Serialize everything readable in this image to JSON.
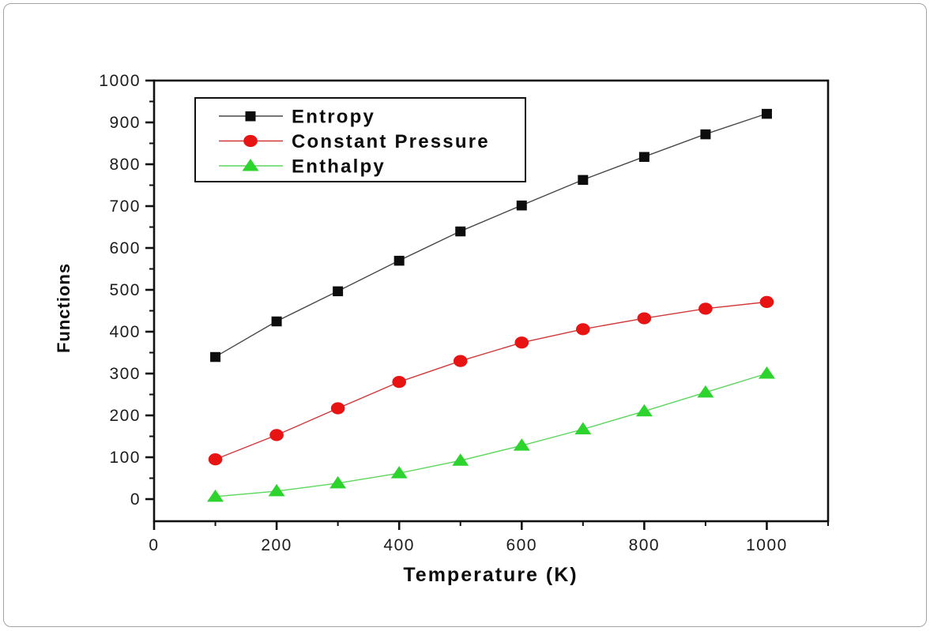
{
  "canvas": {
    "background": "#ffffff",
    "border_color": "#a3a3a3"
  },
  "chart_data": {
    "type": "line",
    "title": "",
    "xlabel": "Temperature (K)",
    "ylabel": "Functions",
    "x": [
      100,
      200,
      300,
      400,
      500,
      600,
      700,
      800,
      900,
      1000
    ],
    "series": [
      {
        "name": "Entropy",
        "marker": "square",
        "marker_color": "#0d0d0d",
        "line_color": "#484848",
        "values": [
          340,
          425,
          497,
          570,
          640,
          702,
          763,
          818,
          872,
          921
        ]
      },
      {
        "name": "Constant Pressure",
        "marker": "circle",
        "marker_color": "#e81414",
        "line_color": "#d03838",
        "values": [
          95,
          153,
          217,
          280,
          330,
          374,
          406,
          432,
          455,
          471
        ]
      },
      {
        "name": "Enthalpy",
        "marker": "triangle",
        "marker_color": "#2ed42e",
        "line_color": "#5cd65c",
        "values": [
          6,
          19,
          38,
          62,
          92,
          128,
          167,
          210,
          255,
          300
        ]
      }
    ],
    "xlim": [
      0,
      1100
    ],
    "ylim": [
      -52.8,
      1000
    ],
    "x_ticks": [
      0,
      200,
      400,
      600,
      800,
      1000
    ],
    "x_minor_step": 100,
    "y_ticks": [
      0,
      100,
      200,
      300,
      400,
      500,
      600,
      700,
      800,
      900,
      1000
    ],
    "y_minor_step": 50,
    "grid": false,
    "legend_position": "upper-left-inside"
  }
}
